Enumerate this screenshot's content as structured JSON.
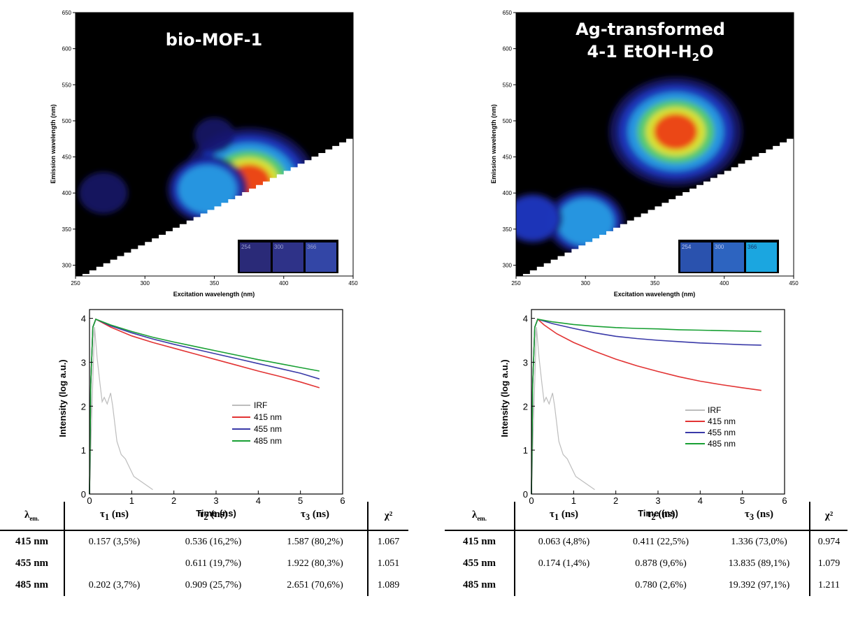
{
  "panels": [
    {
      "contour": {
        "title_line1": "bio-MOF-1",
        "title_line2": "",
        "title_sub": "",
        "title_line2_tail": "",
        "xlabel": "Excitation wavelength (nm)",
        "ylabel": "Emission wavelength (nm)",
        "xticks": [
          "250",
          "300",
          "350",
          "400",
          "450"
        ],
        "yticks": [
          "300",
          "350",
          "400",
          "450",
          "500",
          "550",
          "600",
          "650"
        ],
        "inset_labels": [
          "254",
          "300",
          "366"
        ],
        "inset_colors": [
          "#2a2a78",
          "#2e3288",
          "#3346a6"
        ]
      },
      "decay": {
        "xlabel": "Time (ns)",
        "ylabel": "Intensity (log a.u.)",
        "xticks": [
          "0",
          "1",
          "2",
          "3",
          "4",
          "5",
          "6"
        ],
        "yticks": [
          "0",
          "1",
          "2",
          "3",
          "4"
        ],
        "legend": [
          "IRF",
          "415 nm",
          "455 nm",
          "485 nm"
        ]
      },
      "table": {
        "headers": [
          "λem.",
          "τ1 (ns)",
          "τ2 (ns)",
          "τ3 (ns)",
          "χ²"
        ],
        "rows": [
          [
            "415 nm",
            "0.157 (3,5%)",
            "0.536 (16,2%)",
            "1.587 (80,2%)",
            "1.067"
          ],
          [
            "455 nm",
            "",
            "0.611 (19,7%)",
            "1.922 (80,3%)",
            "1.051"
          ],
          [
            "485 nm",
            "0.202 (3,7%)",
            "0.909 (25,7%)",
            "2.651 (70,6%)",
            "1.089"
          ]
        ]
      }
    },
    {
      "contour": {
        "title_line1": "Ag-transformed",
        "title_line2": "4-1 EtOH-H",
        "title_sub": "2",
        "title_line2_tail": "O",
        "xlabel": "Excitation wavelength (nm)",
        "ylabel": "Emission wavelength (nm)",
        "xticks": [
          "250",
          "300",
          "350",
          "400",
          "450"
        ],
        "yticks": [
          "300",
          "350",
          "400",
          "450",
          "500",
          "550",
          "600",
          "650"
        ],
        "inset_labels": [
          "254",
          "300",
          "366"
        ],
        "inset_colors": [
          "#2a52ae",
          "#2d64c0",
          "#1ba6e0"
        ]
      },
      "decay": {
        "xlabel": "Time (ns)",
        "ylabel": "Intensity (log a.u.)",
        "xticks": [
          "0",
          "1",
          "2",
          "3",
          "4",
          "5",
          "6"
        ],
        "yticks": [
          "0",
          "1",
          "2",
          "3",
          "4"
        ],
        "legend": [
          "IRF",
          "415 nm",
          "455 nm",
          "485 nm"
        ]
      },
      "table": {
        "headers": [
          "λem.",
          "τ1 (ns)",
          "τ2 (ns)",
          "τ3 (ns)",
          "χ²"
        ],
        "rows": [
          [
            "415 nm",
            "0.063 (4,8%)",
            "0.411 (22,5%)",
            "1.336 (73,0%)",
            "0.974"
          ],
          [
            "455 nm",
            "0.174 (1,4%)",
            "0.878 (9,6%)",
            "13.835 (89,1%)",
            "1.079"
          ],
          [
            "485 nm",
            "",
            "0.780 (2,6%)",
            "19.392 (97,1%)",
            "1.211"
          ]
        ]
      }
    }
  ],
  "chart_data": [
    {
      "type": "heatmap",
      "title": "bio-MOF-1",
      "xlabel": "Excitation wavelength (nm)",
      "ylabel": "Emission wavelength (nm)",
      "xlim": [
        250,
        450
      ],
      "ylim": [
        285,
        650
      ],
      "colormap": [
        "#000000",
        "#15156e",
        "#1f3cc8",
        "#27a6e6",
        "#5ad25a",
        "#f0e628",
        "#ee2a10"
      ],
      "peaks": [
        {
          "x": 375,
          "y": 415,
          "intensity": 1.0
        },
        {
          "x": 345,
          "y": 405,
          "intensity": 0.5
        },
        {
          "x": 270,
          "y": 400,
          "intensity": 0.2
        },
        {
          "x": 350,
          "y": 480,
          "intensity": 0.12
        }
      ],
      "inset": {
        "labels": [
          "254",
          "300",
          "366"
        ]
      }
    },
    {
      "type": "heatmap",
      "title": "Ag-transformed 4-1 EtOH-H2O",
      "xlabel": "Excitation wavelength (nm)",
      "ylabel": "Emission wavelength (nm)",
      "xlim": [
        250,
        450
      ],
      "ylim": [
        285,
        650
      ],
      "colormap": [
        "#000000",
        "#15156e",
        "#1f3cc8",
        "#27a6e6",
        "#5ad25a",
        "#f0e628",
        "#ee2a10"
      ],
      "peaks": [
        {
          "x": 365,
          "y": 485,
          "intensity": 1.0
        },
        {
          "x": 300,
          "y": 360,
          "intensity": 0.48
        },
        {
          "x": 262,
          "y": 365,
          "intensity": 0.3
        }
      ],
      "inset": {
        "labels": [
          "254",
          "300",
          "366"
        ]
      }
    },
    {
      "type": "line",
      "xlabel": "Time (ns)",
      "ylabel": "Intensity (log a.u.)",
      "xlim": [
        0,
        6
      ],
      "ylim": [
        0,
        4.2
      ],
      "legend_position": "right",
      "series": [
        {
          "name": "IRF",
          "color": "#bdbdbd",
          "x": [
            0,
            0.06,
            0.12,
            0.18,
            0.25,
            0.3,
            0.35,
            0.42,
            0.5,
            0.55,
            0.6,
            0.65,
            0.75,
            0.85,
            0.95,
            1.05,
            1.2,
            1.35,
            1.5
          ],
          "y": [
            0,
            2.0,
            3.8,
            3.1,
            2.5,
            2.1,
            2.2,
            2.05,
            2.3,
            2.0,
            1.6,
            1.2,
            0.9,
            0.8,
            0.6,
            0.4,
            0.3,
            0.2,
            0.1
          ]
        },
        {
          "name": "415 nm",
          "color": "#e23434",
          "x": [
            0,
            0.03,
            0.08,
            0.15,
            0.5,
            1.0,
            1.5,
            2.0,
            2.5,
            3.0,
            3.5,
            4.0,
            4.5,
            5.0,
            5.45
          ],
          "y": [
            0,
            2.5,
            3.8,
            3.98,
            3.8,
            3.6,
            3.45,
            3.32,
            3.19,
            3.06,
            2.93,
            2.8,
            2.68,
            2.55,
            2.42
          ]
        },
        {
          "name": "455 nm",
          "color": "#3a3aa8",
          "x": [
            0,
            0.03,
            0.08,
            0.15,
            0.5,
            1.0,
            1.5,
            2.0,
            2.5,
            3.0,
            3.5,
            4.0,
            4.5,
            5.0,
            5.45
          ],
          "y": [
            0,
            2.5,
            3.8,
            3.98,
            3.83,
            3.67,
            3.53,
            3.41,
            3.3,
            3.19,
            3.08,
            2.97,
            2.86,
            2.75,
            2.62
          ]
        },
        {
          "name": "485 nm",
          "color": "#19a034",
          "x": [
            0,
            0.03,
            0.08,
            0.15,
            0.5,
            1.0,
            1.5,
            2.0,
            2.5,
            3.0,
            3.5,
            4.0,
            4.5,
            5.0,
            5.45
          ],
          "y": [
            0,
            2.5,
            3.8,
            3.98,
            3.85,
            3.7,
            3.57,
            3.46,
            3.36,
            3.26,
            3.16,
            3.06,
            2.97,
            2.88,
            2.8
          ]
        }
      ]
    },
    {
      "type": "line",
      "xlabel": "Time (ns)",
      "ylabel": "Intensity (log a.u.)",
      "xlim": [
        0,
        6
      ],
      "ylim": [
        0,
        4.2
      ],
      "legend_position": "right",
      "series": [
        {
          "name": "IRF",
          "color": "#bdbdbd",
          "x": [
            0,
            0.06,
            0.12,
            0.18,
            0.25,
            0.3,
            0.35,
            0.42,
            0.5,
            0.55,
            0.6,
            0.65,
            0.75,
            0.85,
            0.95,
            1.05,
            1.2,
            1.35,
            1.5
          ],
          "y": [
            0,
            2.0,
            3.8,
            3.1,
            2.5,
            2.1,
            2.2,
            2.05,
            2.3,
            2.0,
            1.6,
            1.2,
            0.9,
            0.8,
            0.6,
            0.4,
            0.3,
            0.2,
            0.1
          ]
        },
        {
          "name": "415 nm",
          "color": "#e23434",
          "x": [
            0,
            0.03,
            0.08,
            0.15,
            0.3,
            0.6,
            1.0,
            1.5,
            2.0,
            2.5,
            3.0,
            3.5,
            4.0,
            4.5,
            5.0,
            5.45
          ],
          "y": [
            0,
            2.5,
            3.8,
            3.98,
            3.85,
            3.65,
            3.45,
            3.25,
            3.07,
            2.92,
            2.79,
            2.67,
            2.57,
            2.49,
            2.42,
            2.36
          ]
        },
        {
          "name": "455 nm",
          "color": "#3a3aa8",
          "x": [
            0,
            0.03,
            0.08,
            0.15,
            0.5,
            1.0,
            1.5,
            2.0,
            2.5,
            3.0,
            3.5,
            4.0,
            4.5,
            5.0,
            5.45
          ],
          "y": [
            0,
            2.5,
            3.8,
            3.98,
            3.88,
            3.77,
            3.67,
            3.59,
            3.54,
            3.5,
            3.47,
            3.44,
            3.42,
            3.4,
            3.39
          ]
        },
        {
          "name": "485 nm",
          "color": "#19a034",
          "x": [
            0,
            0.03,
            0.08,
            0.15,
            0.5,
            1.0,
            1.5,
            2.0,
            2.5,
            3.0,
            3.5,
            4.0,
            4.5,
            5.0,
            5.45
          ],
          "y": [
            0,
            2.5,
            3.8,
            3.98,
            3.92,
            3.86,
            3.82,
            3.79,
            3.77,
            3.76,
            3.74,
            3.73,
            3.72,
            3.71,
            3.7
          ]
        }
      ]
    },
    {
      "type": "table",
      "columns": [
        "λem.",
        "τ1 (ns)",
        "τ2 (ns)",
        "τ3 (ns)",
        "χ²"
      ],
      "rows": [
        [
          "415 nm",
          "0.157 (3,5%)",
          "0.536 (16,2%)",
          "1.587 (80,2%)",
          "1.067"
        ],
        [
          "455 nm",
          "",
          "0.611 (19,7%)",
          "1.922 (80,3%)",
          "1.051"
        ],
        [
          "485 nm",
          "0.202 (3,7%)",
          "0.909 (25,7%)",
          "2.651 (70,6%)",
          "1.089"
        ]
      ]
    },
    {
      "type": "table",
      "columns": [
        "λem.",
        "τ1 (ns)",
        "τ2 (ns)",
        "τ3 (ns)",
        "χ²"
      ],
      "rows": [
        [
          "415 nm",
          "0.063 (4,8%)",
          "0.411 (22,5%)",
          "1.336 (73,0%)",
          "0.974"
        ],
        [
          "455 nm",
          "0.174 (1,4%)",
          "0.878 (9,6%)",
          "13.835 (89,1%)",
          "1.079"
        ],
        [
          "485 nm",
          "",
          "0.780 (2,6%)",
          "19.392 (97,1%)",
          "1.211"
        ]
      ]
    }
  ]
}
